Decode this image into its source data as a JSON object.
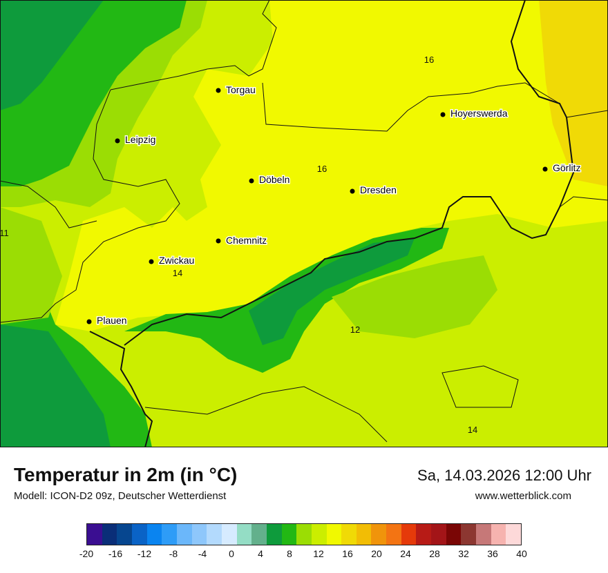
{
  "map": {
    "cities": [
      {
        "name": "Torgau"
      },
      {
        "name": "Hoyerswerda"
      },
      {
        "name": "Leipzig"
      },
      {
        "name": "Döbeln"
      },
      {
        "name": "Dresden"
      },
      {
        "name": "Görlitz"
      },
      {
        "name": "Chemnitz"
      },
      {
        "name": "Zwickau"
      },
      {
        "name": "Plauen"
      }
    ],
    "contour_labels": [
      "16",
      "16",
      "11",
      "14",
      "12",
      "14"
    ]
  },
  "footer": {
    "title": "Temperatur in 2m (in °C)",
    "model": "Modell: ICON-D2 09z, Deutscher Wetterdienst",
    "datetime": "Sa, 14.03.2026 12:00 Uhr",
    "website": "www.wetterblick.com"
  },
  "legend": {
    "colors": [
      "#3a0e91",
      "#0a2e78",
      "#06468f",
      "#0a63c6",
      "#0a84f0",
      "#2e9cf7",
      "#6bb7fa",
      "#8ec7fb",
      "#b3dafd",
      "#d6ebff",
      "#94ddc5",
      "#63b08c",
      "#0e9b3c",
      "#22b814",
      "#9bdd04",
      "#cbee00",
      "#f1f900",
      "#f0da06",
      "#f2bd05",
      "#f0940b",
      "#f37413",
      "#e53a0a",
      "#b71b16",
      "#a31518",
      "#7a0605",
      "#8c3731",
      "#c67878",
      "#f6b3af",
      "#fdd9d9"
    ],
    "ticks": [
      "-20",
      "-16",
      "-12",
      "-8",
      "-4",
      "0",
      "4",
      "8",
      "12",
      "16",
      "20",
      "24",
      "28",
      "32",
      "36",
      "40"
    ]
  }
}
